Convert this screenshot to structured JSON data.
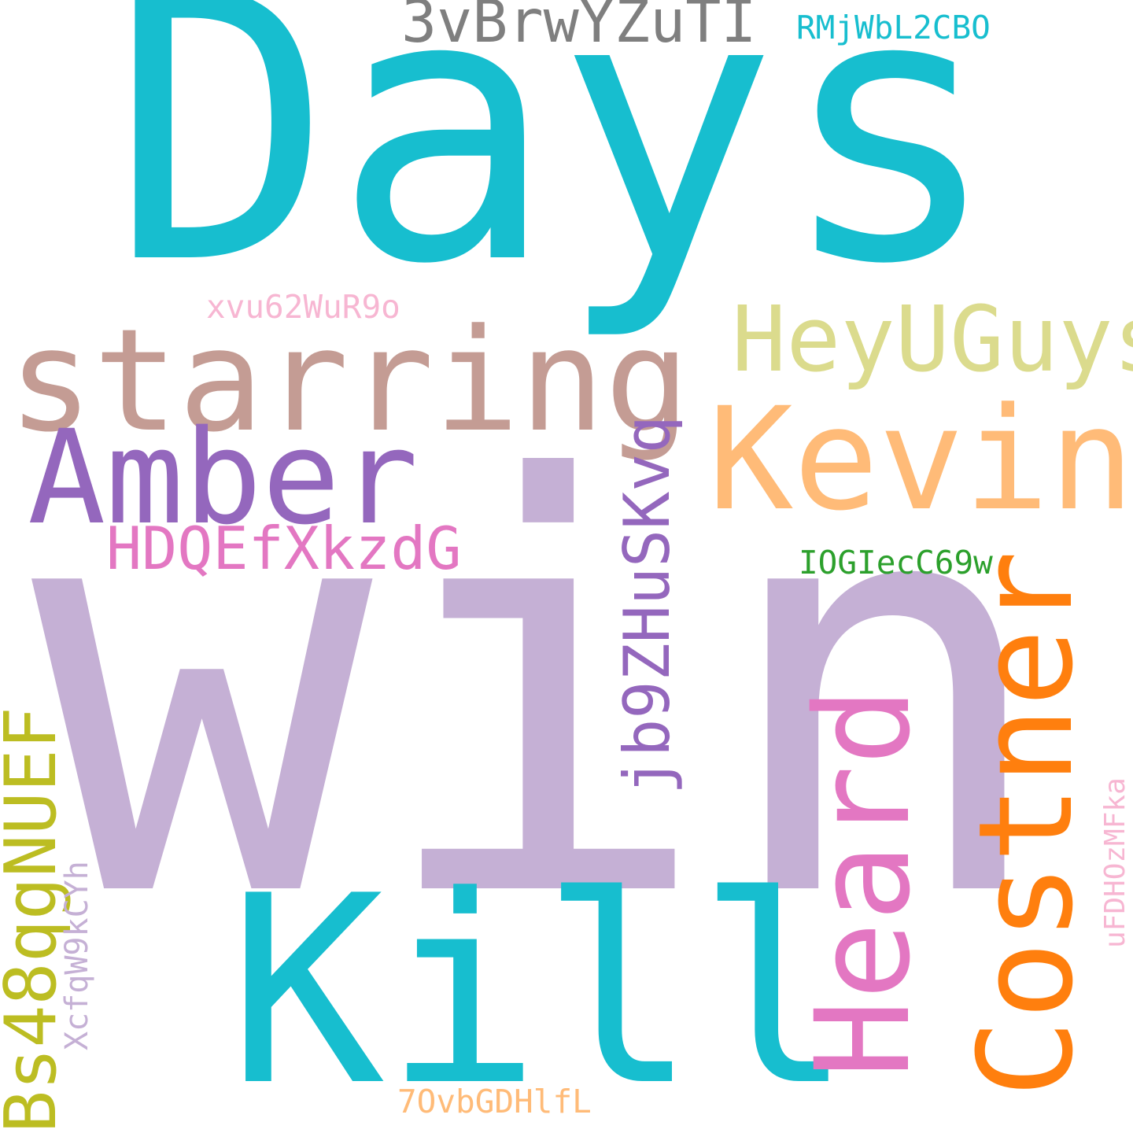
{
  "words": [
    {
      "text": "Days",
      "color": "#17becf"
    },
    {
      "text": "win",
      "color": "#c5b0d5"
    },
    {
      "text": "Kill",
      "color": "#17becf"
    },
    {
      "text": "starring",
      "color": "#c49c94"
    },
    {
      "text": "Kevin",
      "color": "#ffbb78"
    },
    {
      "text": "Amber",
      "color": "#9467bd"
    },
    {
      "text": "Costner",
      "color": "#ff7f0e"
    },
    {
      "text": "Heard",
      "color": "#e377c2"
    },
    {
      "text": "HeyUGuys",
      "color": "#dbdb8d"
    },
    {
      "text": "Bs48qgNUEF",
      "color": "#bcbd22"
    },
    {
      "text": "jb9ZHuSKvq",
      "color": "#9467bd"
    },
    {
      "text": "HDQEfXkzdG",
      "color": "#e377c2"
    },
    {
      "text": "3vBrwYZuTI",
      "color": "#7f7f7f"
    },
    {
      "text": "XcfqW9kCYh",
      "color": "#c5b0d5"
    },
    {
      "text": "IOGIecC69w",
      "color": "#2ca02c"
    },
    {
      "text": "RMjWbL2CBO",
      "color": "#17becf"
    },
    {
      "text": "xvu62WuR9o",
      "color": "#f7b6d2"
    },
    {
      "text": "uFDHOzMFka",
      "color": "#f7b6d2"
    },
    {
      "text": "7OvbGDHlfL",
      "color": "#ffbb78"
    }
  ]
}
